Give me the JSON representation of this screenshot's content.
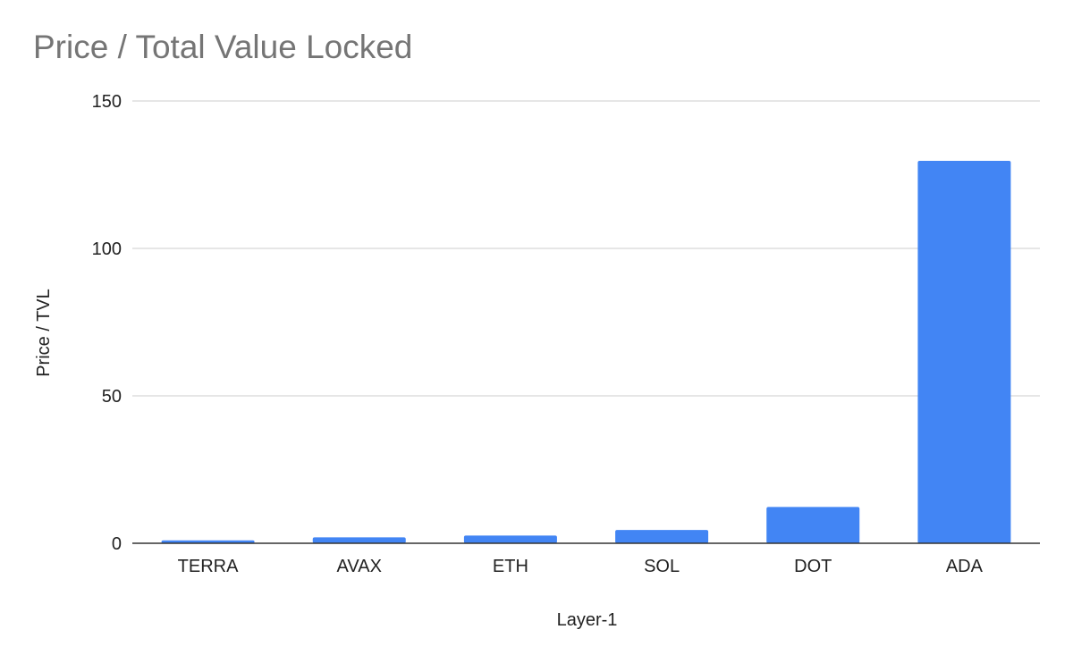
{
  "chart_data": {
    "type": "bar",
    "title": "Price / Total Value Locked",
    "xlabel": "Layer-1",
    "ylabel": "Price / TVL",
    "categories": [
      "TERRA",
      "AVAX",
      "ETH",
      "SOL",
      "DOT",
      "ADA"
    ],
    "values": [
      1,
      2,
      2.6,
      4.5,
      12.3,
      129.7
    ],
    "ylim": [
      0,
      150
    ],
    "yticks": [
      "0",
      "50",
      "100",
      "150"
    ],
    "grid": true,
    "legend": "none",
    "colors": {
      "bar": "#4285f4",
      "grid": "#cccccc",
      "axis": "#333333",
      "title": "#757575"
    }
  }
}
